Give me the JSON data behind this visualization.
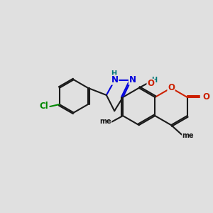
{
  "bg_color": "#e0e0e0",
  "bond_color": "#1a1a1a",
  "bond_lw": 1.5,
  "colors": {
    "N": "#0000dd",
    "O": "#cc2000",
    "Cl": "#008800",
    "H": "#007777",
    "C": "#1a1a1a"
  },
  "fs": 8.5,
  "fs_small": 7.0
}
